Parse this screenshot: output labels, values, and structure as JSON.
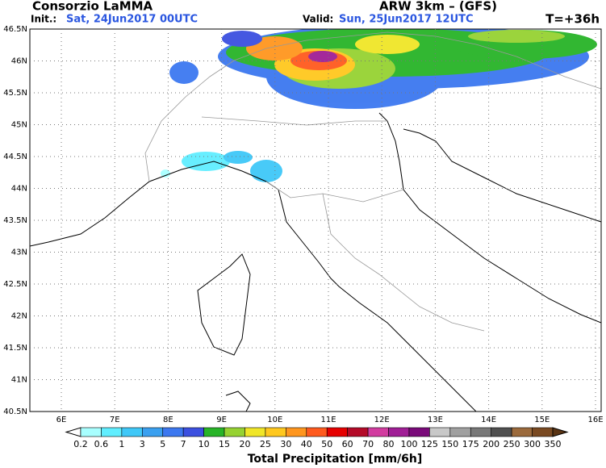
{
  "header": {
    "title": "Consorzio LaMMA",
    "init_label": "Init.:",
    "init_time": "Sat, 24Jun2017  00UTC",
    "model": "ARW 3km – (GFS)",
    "valid_label": "Valid:",
    "valid_time": "Sun, 25Jun2017  12UTC",
    "lead": "T=+36h"
  },
  "map": {
    "lat_labels": [
      "46.5N",
      "46N",
      "45.5N",
      "45N",
      "44.5N",
      "44N",
      "43.5N",
      "43N",
      "42.5N",
      "42N",
      "41.5N",
      "41N",
      "40.5N"
    ],
    "lon_labels": [
      "6E",
      "7E",
      "8E",
      "9E",
      "10E",
      "11E",
      "12E",
      "13E",
      "14E",
      "15E",
      "16E"
    ]
  },
  "legend": {
    "title": "Total Precipitation [mm/6h]",
    "levels": [
      "0.2",
      "0.6",
      "1",
      "3",
      "5",
      "7",
      "10",
      "15",
      "20",
      "25",
      "30",
      "40",
      "50",
      "60",
      "70",
      "80",
      "100",
      "125",
      "150",
      "175",
      "200",
      "250",
      "300",
      "350"
    ],
    "colors": [
      "#a8ffff",
      "#60eeff",
      "#3fc8f8",
      "#3aa0f0",
      "#3c78f0",
      "#3c50e0",
      "#28b428",
      "#96d232",
      "#f0e628",
      "#ffc81e",
      "#ff961e",
      "#ff5a1e",
      "#e60000",
      "#b40a28",
      "#d23ca0",
      "#a01e96",
      "#7a0a7a",
      "#c8c8c8",
      "#a0a0a0",
      "#787878",
      "#505050",
      "#9b6a3c",
      "#7a4a22"
    ]
  }
}
